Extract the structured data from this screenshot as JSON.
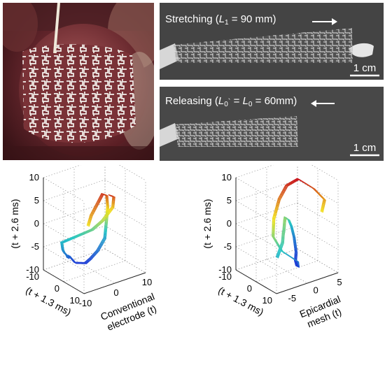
{
  "figure": {
    "panels": {
      "photo": {
        "image": "mesh-electrode-on-heart-photo"
      },
      "stretch": {
        "caption_prefix": "Stretching (",
        "caption_var": "L",
        "caption_sub": "1",
        "caption_suffix": " = 90 mm)",
        "arrow": "right-arrow-icon",
        "scalebar_label": "1 cm"
      },
      "release": {
        "caption_prefix": "Releasing (",
        "caption_var1": "L",
        "caption_sub1": "0",
        "caption_mark": "`",
        "caption_eq": " = ",
        "caption_var2": "L",
        "caption_sub2": "0",
        "caption_suffix": " = 60mm)",
        "arrow": "left-arrow-icon",
        "scalebar_label": "1 cm"
      }
    },
    "colors": {
      "trace_low": "#1f3fd6",
      "trace_mid": "#26c6c6",
      "trace_high": "#f2e21a",
      "trace_peak": "#c8141e"
    }
  },
  "chart_data": [
    {
      "type": "line",
      "subtype": "3d-phase-space-trajectory",
      "title": "",
      "zlabel": "(t + 2.6 ms)",
      "ylabel": "(t + 1.3 ms)",
      "xlabel_line1": "Conventional",
      "xlabel_line2": "electrode (t)",
      "z_ticks": [
        "10",
        "5",
        "0",
        "-5",
        "-10"
      ],
      "y_ticks": [
        "10",
        "0",
        "-10"
      ],
      "x_ticks": [
        "-10",
        "0",
        "10"
      ],
      "zlim": [
        -10,
        10
      ],
      "ylim": [
        -10,
        10
      ],
      "xlim": [
        -10,
        10
      ],
      "grid": true,
      "series": [
        {
          "x": [
            -8,
            -7,
            -4,
            -2,
            0,
            1,
            2,
            3,
            4,
            3,
            2,
            1,
            0,
            -1,
            -2,
            -3,
            -4,
            -5,
            -6,
            -7,
            -8,
            -6,
            -4,
            -2,
            0,
            2,
            1,
            -1
          ],
          "y": [
            9,
            9,
            8,
            7,
            6,
            5,
            3,
            1,
            -1,
            -3,
            -5,
            -6,
            -7,
            -8,
            -8,
            -8,
            -7,
            -6,
            -6,
            -5,
            -4,
            -2,
            0,
            2,
            4,
            6,
            8,
            9
          ],
          "z": [
            4,
            6,
            8,
            9,
            8,
            5,
            2,
            -1,
            -4,
            -7,
            -9,
            -10,
            -10,
            -10,
            -9,
            -8,
            -8,
            -7,
            -6,
            -5,
            -3,
            -2,
            -1,
            0,
            2,
            5,
            8,
            9
          ]
        }
      ]
    },
    {
      "type": "line",
      "subtype": "3d-phase-space-trajectory",
      "title": "",
      "zlabel": "(t + 2.6 ms)",
      "ylabel": "(t + 1.3 ms)",
      "xlabel_line1": "Epicardial",
      "xlabel_line2": "mesh (t)",
      "z_ticks": [
        "10",
        "5",
        "0",
        "-5",
        "-10"
      ],
      "y_ticks": [
        "10",
        "0",
        "-10"
      ],
      "x_ticks": [
        "-5",
        "0",
        "5"
      ],
      "zlim": [
        -10,
        10
      ],
      "ylim": [
        -10,
        10
      ],
      "xlim": [
        -8,
        5
      ],
      "grid": true,
      "series": [
        {
          "x": [
            -7,
            -6,
            -5,
            -4,
            -3,
            -2,
            -1,
            0,
            1,
            2,
            3,
            3,
            2,
            1,
            0,
            -1,
            -3,
            -5,
            -6,
            -7,
            -6,
            -4,
            -2,
            0,
            2,
            3,
            2
          ],
          "y": [
            8,
            7,
            6,
            4,
            2,
            0,
            -2,
            -4,
            -5,
            -6,
            -7,
            -6,
            -4,
            -1,
            2,
            4,
            6,
            7,
            8,
            6,
            4,
            2,
            1,
            2,
            5,
            8,
            9
          ],
          "z": [
            -3,
            -2,
            -1,
            0,
            0,
            1,
            1,
            0,
            -1,
            -3,
            -6,
            -9,
            -10,
            -10,
            -9,
            -7,
            -5,
            -3,
            -2,
            1,
            4,
            7,
            9,
            10,
            8,
            6,
            4
          ]
        }
      ]
    }
  ]
}
